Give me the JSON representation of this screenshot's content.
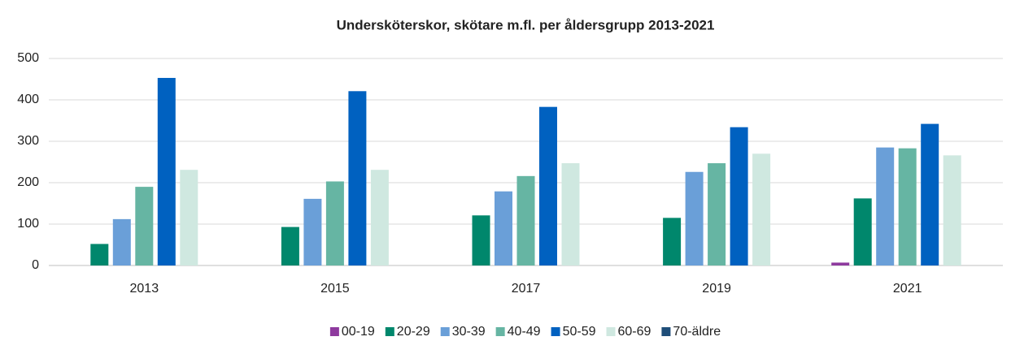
{
  "chart_data": {
    "type": "bar",
    "title": "Undersköterskor, skötare m.fl.  per åldersgrupp 2013-2021",
    "categories": [
      "2013",
      "2015",
      "2017",
      "2019",
      "2021"
    ],
    "series": [
      {
        "name": "00-19",
        "color": "#8e3a9e",
        "values": [
          0,
          0,
          0,
          0,
          7
        ]
      },
      {
        "name": "20-29",
        "color": "#00876c",
        "values": [
          52,
          93,
          121,
          115,
          162
        ]
      },
      {
        "name": "30-39",
        "color": "#6a9fd8",
        "values": [
          112,
          161,
          179,
          226,
          285
        ]
      },
      {
        "name": "40-49",
        "color": "#66b5a3",
        "values": [
          190,
          203,
          216,
          247,
          283
        ]
      },
      {
        "name": "50-59",
        "color": "#0061c0",
        "values": [
          453,
          421,
          383,
          334,
          342
        ]
      },
      {
        "name": "60-69",
        "color": "#cfe8e0",
        "values": [
          231,
          231,
          247,
          270,
          266
        ]
      },
      {
        "name": "70-äldre",
        "color": "#1f4e79",
        "values": [
          0,
          0,
          0,
          0,
          0
        ]
      }
    ],
    "ylim": [
      0,
      500
    ],
    "yticks": [
      0,
      100,
      200,
      300,
      400,
      500
    ],
    "grid": true,
    "legend": "bottom"
  }
}
